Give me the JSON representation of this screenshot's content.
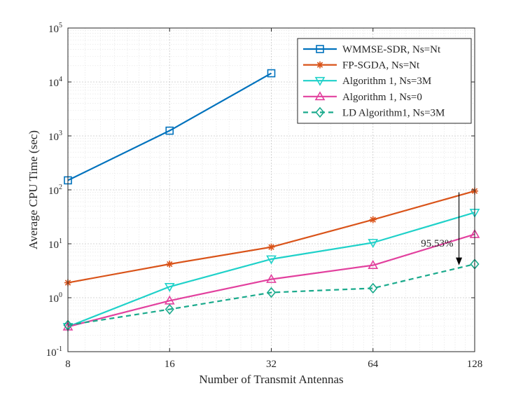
{
  "chart_data": {
    "type": "line",
    "title": "",
    "xlabel": "Number of Transmit Antennas",
    "ylabel": "Average CPU Time (sec)",
    "x_scale": "log2",
    "y_scale": "log10",
    "grid": true,
    "minor_grid": true,
    "legend_position": "top-right",
    "x": [
      8,
      16,
      32,
      64,
      128
    ],
    "x_tick_labels": [
      "8",
      "16",
      "32",
      "64",
      "128"
    ],
    "xlim": [
      8,
      128
    ],
    "ylim": [
      0.1,
      100000
    ],
    "y_ticks": [
      {
        "value": 0.1,
        "base": "10",
        "exp": "-1"
      },
      {
        "value": 1,
        "base": "10",
        "exp": "0"
      },
      {
        "value": 10,
        "base": "10",
        "exp": "1"
      },
      {
        "value": 100,
        "base": "10",
        "exp": "2"
      },
      {
        "value": 1000,
        "base": "10",
        "exp": "3"
      },
      {
        "value": 10000,
        "base": "10",
        "exp": "4"
      },
      {
        "value": 100000,
        "base": "10",
        "exp": "5"
      }
    ],
    "series": [
      {
        "name": "WMMSE-SDR, Ns=Nt",
        "color": "#0072BD",
        "marker": "square",
        "dash": "solid",
        "x": [
          8,
          16,
          32
        ],
        "values": [
          150,
          1250,
          14500
        ]
      },
      {
        "name": "FP-SGDA, Ns=Nt",
        "color": "#D95319",
        "marker": "asterisk",
        "dash": "solid",
        "x": [
          8,
          16,
          32,
          64,
          128
        ],
        "values": [
          1.9,
          4.2,
          8.7,
          28,
          95
        ]
      },
      {
        "name": "Algorithm 1, Ns=3M",
        "color": "#1FD1C9",
        "marker": "triangle-down",
        "dash": "solid",
        "x": [
          8,
          16,
          32,
          64,
          128
        ],
        "values": [
          0.29,
          1.6,
          5.2,
          10.5,
          38
        ]
      },
      {
        "name": "Algorithm 1, Ns=0",
        "color": "#E2409E",
        "marker": "triangle-up",
        "dash": "solid",
        "x": [
          8,
          16,
          32,
          64,
          128
        ],
        "values": [
          0.29,
          0.88,
          2.2,
          4.0,
          15
        ]
      },
      {
        "name": "LD Algorithm1, Ns=3M",
        "color": "#1AAA8C",
        "marker": "diamond",
        "dash": "dashed",
        "x": [
          8,
          16,
          32,
          64,
          128
        ],
        "values": [
          0.31,
          0.61,
          1.25,
          1.5,
          4.2
        ]
      }
    ],
    "annotation": {
      "text": "95.53%",
      "arrow_x": 115,
      "arrow_from": 90,
      "arrow_to": 4.0
    }
  }
}
